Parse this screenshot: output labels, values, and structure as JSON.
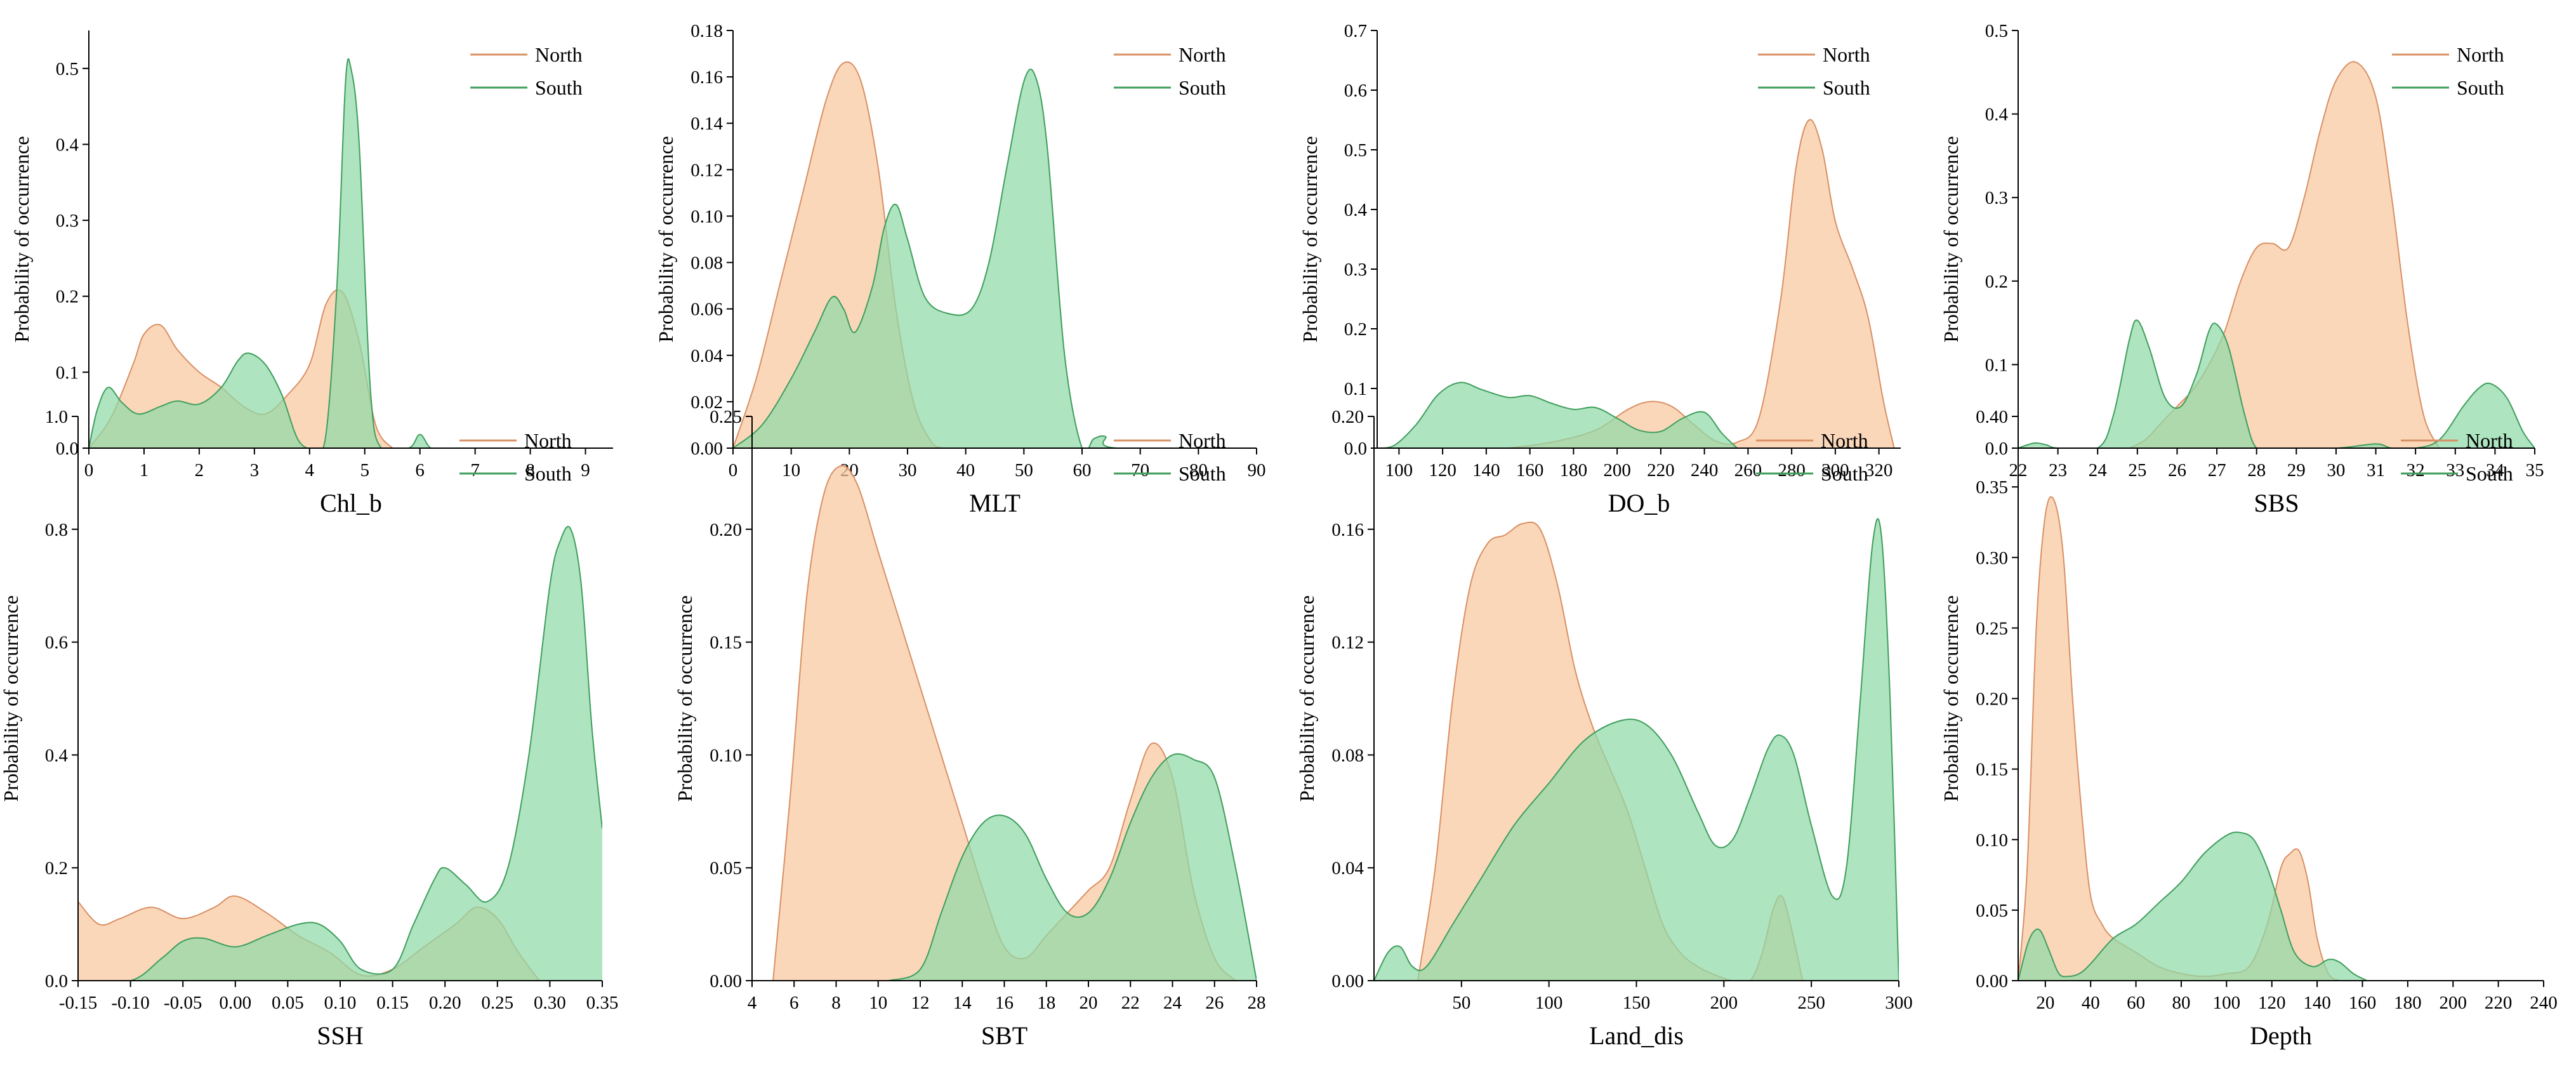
{
  "figure": {
    "ylabel": "Probability of occurrence"
  },
  "legend": {
    "north_label": "North",
    "south_label": "South"
  },
  "colors": {
    "north_fill": "#f9c79f",
    "north_line": "#d89064",
    "south_fill": "#8fd9a8",
    "south_line": "#3f9e5d"
  },
  "chart_data": [
    {
      "type": "area",
      "title": "",
      "xlabel": "Chl_b",
      "ylabel": "Probability of occurrence",
      "xlim": [
        0,
        9.5
      ],
      "ylim": [
        0,
        0.55
      ],
      "legend": "top-right",
      "xticks": [
        0,
        1,
        2,
        3,
        4,
        5,
        6,
        7,
        8,
        9
      ],
      "yticks": [
        0.0,
        0.1,
        0.2,
        0.3,
        0.4,
        0.5
      ],
      "series": [
        {
          "name": "North",
          "x": [
            0,
            0.4,
            0.8,
            1.0,
            1.3,
            1.6,
            2.0,
            2.4,
            2.8,
            3.2,
            3.6,
            4.0,
            4.3,
            4.6,
            4.9,
            5.2,
            5.5
          ],
          "y": [
            0,
            0.04,
            0.11,
            0.15,
            0.162,
            0.13,
            0.1,
            0.08,
            0.055,
            0.045,
            0.07,
            0.11,
            0.19,
            0.205,
            0.14,
            0.03,
            0
          ]
        },
        {
          "name": "South",
          "x": [
            0,
            0.15,
            0.35,
            0.6,
            0.9,
            1.3,
            1.6,
            2.0,
            2.4,
            2.7,
            2.9,
            3.2,
            3.5,
            3.8,
            4.1,
            4.3,
            4.5,
            4.65,
            4.75,
            4.9,
            5.1,
            5.3,
            5.8,
            6.0,
            6.2,
            6.5
          ],
          "y": [
            0,
            0.05,
            0.08,
            0.06,
            0.045,
            0.055,
            0.062,
            0.058,
            0.08,
            0.115,
            0.125,
            0.11,
            0.07,
            0.01,
            0,
            0.02,
            0.22,
            0.48,
            0.5,
            0.4,
            0.08,
            0,
            0,
            0.018,
            0,
            0
          ]
        }
      ]
    },
    {
      "type": "area",
      "title": "",
      "xlabel": "MLT",
      "ylabel": "Probability of occurrence",
      "xlim": [
        0,
        90
      ],
      "ylim": [
        0,
        0.18
      ],
      "legend": "top-right",
      "xticks": [
        0,
        10,
        20,
        30,
        40,
        50,
        60,
        70,
        80,
        90
      ],
      "yticks": [
        0.0,
        0.02,
        0.04,
        0.06,
        0.08,
        0.1,
        0.12,
        0.14,
        0.16,
        0.18
      ],
      "series": [
        {
          "name": "North",
          "x": [
            0,
            4,
            8,
            12,
            16,
            19,
            22,
            25,
            28,
            31,
            34,
            36
          ],
          "y": [
            0,
            0.03,
            0.07,
            0.11,
            0.15,
            0.166,
            0.158,
            0.12,
            0.06,
            0.02,
            0.003,
            0
          ]
        },
        {
          "name": "South",
          "x": [
            0,
            5,
            10,
            14,
            17,
            19,
            21,
            24,
            26,
            28,
            30,
            33,
            37,
            41,
            44,
            47,
            50,
            52,
            54,
            57,
            60,
            62,
            64,
            66,
            90
          ],
          "y": [
            0,
            0.01,
            0.03,
            0.05,
            0.065,
            0.06,
            0.05,
            0.07,
            0.095,
            0.105,
            0.09,
            0.065,
            0.058,
            0.06,
            0.08,
            0.12,
            0.158,
            0.16,
            0.13,
            0.04,
            0,
            0.004,
            0.005,
            0,
            0
          ]
        }
      ]
    },
    {
      "type": "area",
      "title": "",
      "xlabel": "DO_b",
      "ylabel": "Probability of occurrence",
      "xlim": [
        90,
        330
      ],
      "ylim": [
        0,
        0.7
      ],
      "legend": "top-right",
      "xticks": [
        100,
        120,
        140,
        160,
        180,
        200,
        220,
        240,
        260,
        280,
        300,
        320
      ],
      "yticks": [
        0.0,
        0.1,
        0.2,
        0.3,
        0.4,
        0.5,
        0.6,
        0.7
      ],
      "series": [
        {
          "name": "North",
          "x": [
            150,
            170,
            190,
            205,
            215,
            225,
            235,
            245,
            255,
            265,
            275,
            282,
            288,
            294,
            300,
            308,
            315,
            322,
            327
          ],
          "y": [
            0,
            0.01,
            0.03,
            0.065,
            0.078,
            0.07,
            0.04,
            0.012,
            0.01,
            0.05,
            0.25,
            0.47,
            0.55,
            0.5,
            0.38,
            0.3,
            0.22,
            0.08,
            0
          ]
        },
        {
          "name": "South",
          "x": [
            90,
            98,
            108,
            118,
            128,
            138,
            150,
            160,
            170,
            180,
            190,
            200,
            210,
            220,
            230,
            240,
            248,
            255
          ],
          "y": [
            0,
            0.005,
            0.04,
            0.09,
            0.11,
            0.098,
            0.085,
            0.088,
            0.075,
            0.065,
            0.068,
            0.05,
            0.03,
            0.028,
            0.05,
            0.06,
            0.025,
            0
          ]
        }
      ]
    },
    {
      "type": "area",
      "title": "",
      "xlabel": "SBS",
      "ylabel": "Probability of occurrence",
      "xlim": [
        22,
        35
      ],
      "ylim": [
        0,
        0.5
      ],
      "legend": "top-right",
      "xticks": [
        22,
        23,
        24,
        25,
        26,
        27,
        28,
        29,
        30,
        31,
        32,
        33,
        34,
        35
      ],
      "yticks": [
        0.0,
        0.1,
        0.2,
        0.3,
        0.4,
        0.5
      ],
      "series": [
        {
          "name": "North",
          "x": [
            24.8,
            25.2,
            25.6,
            26.0,
            26.4,
            26.8,
            27.2,
            27.6,
            28.0,
            28.4,
            28.8,
            29.2,
            29.6,
            30.0,
            30.5,
            31.0,
            31.4,
            31.8,
            32.2,
            32.6
          ],
          "y": [
            0,
            0.01,
            0.03,
            0.05,
            0.07,
            0.1,
            0.14,
            0.2,
            0.24,
            0.245,
            0.24,
            0.3,
            0.38,
            0.44,
            0.462,
            0.42,
            0.3,
            0.15,
            0.04,
            0
          ]
        },
        {
          "name": "South",
          "x": [
            22,
            22.4,
            22.7,
            23,
            24,
            24.4,
            24.8,
            25.0,
            25.3,
            25.7,
            26.1,
            26.5,
            26.8,
            27.0,
            27.3,
            27.7,
            28.0,
            28.5,
            30,
            31,
            31.4,
            32,
            32.6,
            33.2,
            33.6,
            33.9,
            34.3,
            34.7,
            35
          ],
          "y": [
            0,
            0.006,
            0.004,
            0,
            0,
            0.04,
            0.13,
            0.153,
            0.12,
            0.06,
            0.05,
            0.09,
            0.14,
            0.148,
            0.12,
            0.04,
            0,
            0,
            0,
            0.005,
            0,
            0,
            0.01,
            0.05,
            0.072,
            0.077,
            0.06,
            0.02,
            0
          ]
        }
      ]
    },
    {
      "type": "area",
      "title": "",
      "xlabel": "SSH",
      "ylabel": "Probability of occurrence",
      "xlim": [
        -0.15,
        0.35
      ],
      "ylim": [
        0,
        1.0
      ],
      "legend": "top-right",
      "xticks": [
        -0.15,
        -0.1,
        -0.05,
        0.0,
        0.05,
        0.1,
        0.15,
        0.2,
        0.25,
        0.3,
        0.35
      ],
      "yticks": [
        0.0,
        0.2,
        0.4,
        0.6,
        0.8,
        1.0
      ],
      "series": [
        {
          "name": "North",
          "x": [
            -0.15,
            -0.13,
            -0.11,
            -0.08,
            -0.05,
            -0.02,
            0.0,
            0.03,
            0.06,
            0.09,
            0.12,
            0.15,
            0.18,
            0.21,
            0.23,
            0.25,
            0.27,
            0.29
          ],
          "y": [
            0.14,
            0.1,
            0.11,
            0.13,
            0.11,
            0.13,
            0.15,
            0.12,
            0.08,
            0.05,
            0.01,
            0.02,
            0.06,
            0.1,
            0.13,
            0.11,
            0.05,
            0
          ]
        },
        {
          "name": "South",
          "x": [
            -0.15,
            -0.1,
            -0.07,
            -0.05,
            -0.03,
            0.0,
            0.03,
            0.06,
            0.08,
            0.1,
            0.12,
            0.15,
            0.17,
            0.19,
            0.2,
            0.22,
            0.24,
            0.26,
            0.28,
            0.3,
            0.31,
            0.32,
            0.33,
            0.34,
            0.35
          ],
          "y": [
            0,
            0,
            0.04,
            0.07,
            0.075,
            0.06,
            0.08,
            0.1,
            0.1,
            0.07,
            0.02,
            0.02,
            0.1,
            0.18,
            0.2,
            0.17,
            0.14,
            0.2,
            0.4,
            0.7,
            0.78,
            0.8,
            0.7,
            0.45,
            0.27
          ]
        }
      ]
    },
    {
      "type": "area",
      "title": "",
      "xlabel": "SBT",
      "ylabel": "Probability of occurrence",
      "xlim": [
        4,
        28
      ],
      "ylim": [
        0,
        0.25
      ],
      "legend": "top-right",
      "xticks": [
        4,
        6,
        8,
        10,
        12,
        14,
        16,
        18,
        20,
        22,
        24,
        26,
        28
      ],
      "yticks": [
        0.0,
        0.05,
        0.1,
        0.15,
        0.2,
        0.25
      ],
      "series": [
        {
          "name": "North",
          "x": [
            5,
            5.8,
            6.6,
            7.4,
            8.2,
            9.0,
            10,
            11,
            12,
            13,
            14,
            15,
            16,
            17,
            18,
            19,
            20,
            21,
            22,
            23,
            24,
            25,
            26,
            27
          ],
          "y": [
            0,
            0.08,
            0.17,
            0.215,
            0.228,
            0.22,
            0.19,
            0.16,
            0.13,
            0.1,
            0.07,
            0.04,
            0.015,
            0.01,
            0.02,
            0.03,
            0.04,
            0.05,
            0.08,
            0.105,
            0.09,
            0.04,
            0.01,
            0
          ]
        },
        {
          "name": "South",
          "x": [
            10.5,
            12,
            13,
            14,
            15,
            16,
            17,
            18,
            19,
            20,
            21,
            22,
            23,
            24,
            25,
            26,
            27,
            28
          ],
          "y": [
            0,
            0.005,
            0.03,
            0.055,
            0.07,
            0.073,
            0.065,
            0.045,
            0.03,
            0.03,
            0.045,
            0.07,
            0.09,
            0.1,
            0.098,
            0.09,
            0.05,
            0
          ]
        }
      ]
    },
    {
      "type": "area",
      "title": "",
      "xlabel": "Land_dis",
      "ylabel": "Probability of occurrence",
      "xlim": [
        0,
        300
      ],
      "ylim": [
        0,
        0.2
      ],
      "legend": "top-right",
      "xticks": [
        50,
        100,
        150,
        200,
        250,
        300
      ],
      "yticks": [
        0.0,
        0.04,
        0.08,
        0.12,
        0.16,
        0.2
      ],
      "series": [
        {
          "name": "North",
          "x": [
            25,
            35,
            45,
            55,
            65,
            75,
            85,
            95,
            105,
            115,
            125,
            135,
            145,
            155,
            165,
            175,
            185,
            195,
            205,
            215,
            222,
            228,
            233,
            238,
            245
          ],
          "y": [
            0,
            0.04,
            0.1,
            0.14,
            0.155,
            0.158,
            0.162,
            0.16,
            0.14,
            0.11,
            0.09,
            0.075,
            0.06,
            0.04,
            0.02,
            0.01,
            0.005,
            0.002,
            0,
            0,
            0.01,
            0.025,
            0.03,
            0.02,
            0
          ]
        },
        {
          "name": "South",
          "x": [
            0,
            8,
            15,
            22,
            30,
            45,
            60,
            80,
            100,
            120,
            140,
            155,
            170,
            185,
            195,
            205,
            215,
            225,
            232,
            240,
            250,
            262,
            270,
            278,
            285,
            290,
            295,
            300
          ],
          "y": [
            0,
            0.01,
            0.012,
            0.005,
            0.005,
            0.02,
            0.035,
            0.055,
            0.07,
            0.085,
            0.092,
            0.091,
            0.08,
            0.06,
            0.048,
            0.05,
            0.065,
            0.082,
            0.087,
            0.08,
            0.055,
            0.03,
            0.04,
            0.1,
            0.155,
            0.158,
            0.1,
            0
          ]
        }
      ]
    },
    {
      "type": "area",
      "title": "",
      "xlabel": "Depth",
      "ylabel": "Probability of occurrence",
      "xlim": [
        8,
        240
      ],
      "ylim": [
        0,
        0.4
      ],
      "legend": "top-right",
      "xticks": [
        20,
        40,
        60,
        80,
        100,
        120,
        140,
        160,
        180,
        200,
        220,
        240
      ],
      "yticks": [
        0.0,
        0.05,
        0.1,
        0.15,
        0.2,
        0.25,
        0.3,
        0.35,
        0.4
      ],
      "series": [
        {
          "name": "North",
          "x": [
            8,
            12,
            16,
            20,
            24,
            28,
            32,
            36,
            40,
            45,
            50,
            60,
            70,
            80,
            90,
            100,
            110,
            118,
            124,
            128,
            132,
            136,
            140,
            145,
            150
          ],
          "y": [
            0,
            0.08,
            0.25,
            0.33,
            0.34,
            0.3,
            0.2,
            0.12,
            0.06,
            0.04,
            0.03,
            0.02,
            0.01,
            0.005,
            0.003,
            0.005,
            0.01,
            0.04,
            0.08,
            0.09,
            0.092,
            0.07,
            0.03,
            0.005,
            0
          ]
        },
        {
          "name": "South",
          "x": [
            8,
            12,
            15,
            18,
            22,
            26,
            30,
            35,
            40,
            50,
            60,
            70,
            80,
            90,
            100,
            106,
            112,
            118,
            124,
            130,
            138,
            145,
            150,
            156,
            162
          ],
          "y": [
            0,
            0.025,
            0.035,
            0.035,
            0.02,
            0.005,
            0.003,
            0.005,
            0.012,
            0.03,
            0.04,
            0.055,
            0.07,
            0.09,
            0.103,
            0.105,
            0.1,
            0.08,
            0.05,
            0.02,
            0.01,
            0.015,
            0.013,
            0.005,
            0
          ]
        }
      ]
    }
  ]
}
